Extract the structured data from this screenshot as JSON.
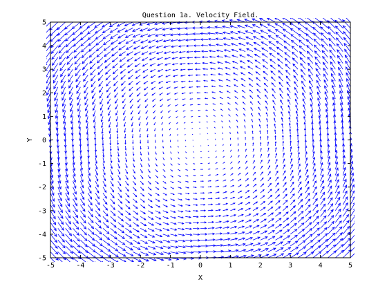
{
  "chart_data": {
    "type": "quiver",
    "title": "Question 1a. Velocity Field.",
    "xlabel": "X",
    "ylabel": "Y",
    "xlim": [
      -5,
      5
    ],
    "ylim": [
      -5,
      5
    ],
    "xticks": [
      -5,
      -4,
      -3,
      -2,
      -1,
      0,
      1,
      2,
      3,
      4,
      5
    ],
    "yticks": [
      -5,
      -4,
      -3,
      -2,
      -1,
      0,
      1,
      2,
      3,
      4,
      5
    ],
    "xtick_labels": [
      "-5",
      "-4",
      "-3",
      "-2",
      "-1",
      "0",
      "1",
      "2",
      "3",
      "4",
      "5"
    ],
    "ytick_labels": [
      "-5",
      "-4",
      "-3",
      "-2",
      "-1",
      "0",
      "1",
      "2",
      "3",
      "4",
      "5"
    ],
    "grid": false,
    "field": {
      "u": "-y",
      "v": "x",
      "x_range": [
        -5,
        5
      ],
      "y_range": [
        -5,
        5
      ],
      "sample_spacing": 0.25,
      "rotation": "counterclockwise",
      "center": [
        0,
        0
      ]
    },
    "arrow_color": "#0000ff"
  },
  "colors": {
    "axes": "#000000",
    "background": "#ffffff",
    "arrows": "#0000ff"
  }
}
